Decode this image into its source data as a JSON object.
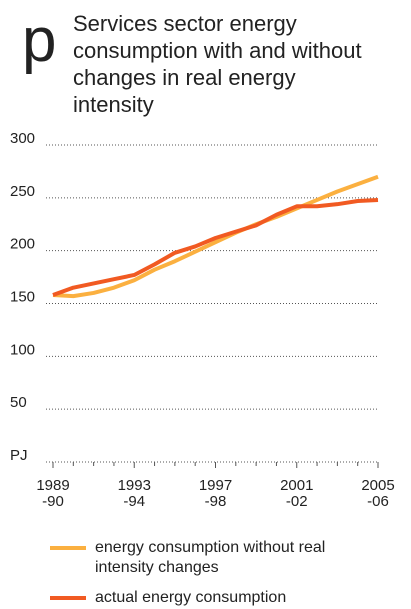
{
  "panel_label": "p",
  "chart_data": {
    "type": "line",
    "title": "Services sector energy consumption with and without changes in real energy intensity",
    "categories": [
      "1989-90",
      null,
      null,
      null,
      "1993-94",
      null,
      null,
      null,
      "1997-98",
      null,
      null,
      null,
      "2001-02",
      null,
      null,
      null,
      "2005-06"
    ],
    "series": [
      {
        "name": "energy consumption without real intensity changes",
        "color": "#fbb040",
        "values": [
          158,
          157,
          160,
          165,
          172,
          182,
          190,
          199,
          208,
          217,
          225,
          232,
          240,
          248,
          256,
          263,
          270
        ]
      },
      {
        "name": "actual energy consumption",
        "color": "#f15a22",
        "values": [
          158,
          165,
          169,
          173,
          177,
          187,
          198,
          204,
          212,
          218,
          224,
          234,
          242,
          242,
          244,
          247,
          248
        ]
      }
    ],
    "ylim": [
      0,
      300
    ],
    "yticks": [
      {
        "value": 0,
        "label": "PJ"
      },
      50,
      100,
      150,
      200,
      250,
      300
    ],
    "grid": true
  }
}
